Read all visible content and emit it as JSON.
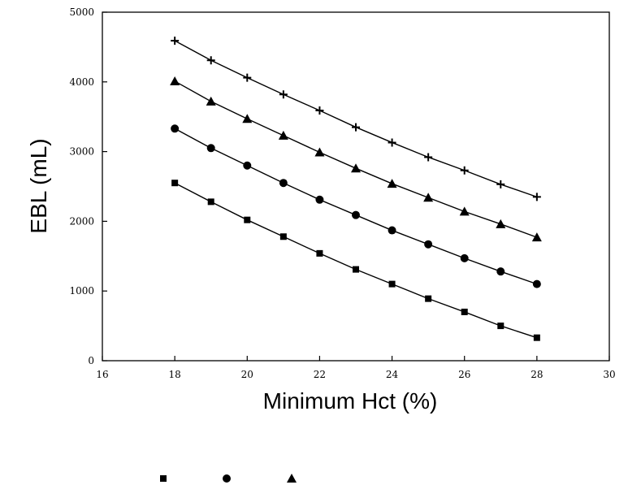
{
  "chart_data": {
    "type": "line",
    "xlabel": "Minimum Hct (%)",
    "ylabel": "EBL (mL)",
    "xlim": [
      16,
      30
    ],
    "ylim": [
      0,
      5000
    ],
    "xticks": [
      16,
      18,
      20,
      22,
      24,
      26,
      28,
      30
    ],
    "yticks": [
      0,
      1000,
      2000,
      3000,
      4000,
      5000
    ],
    "grid": false,
    "x": [
      18,
      19,
      20,
      21,
      22,
      23,
      24,
      25,
      26,
      27,
      28
    ],
    "series": [
      {
        "marker": "square",
        "values": [
          2550,
          2280,
          2020,
          1780,
          1540,
          1310,
          1100,
          890,
          700,
          500,
          330
        ]
      },
      {
        "marker": "circle",
        "values": [
          3330,
          3050,
          2800,
          2550,
          2310,
          2090,
          1870,
          1670,
          1470,
          1280,
          1100
        ]
      },
      {
        "marker": "triangle",
        "values": [
          4010,
          3720,
          3470,
          3230,
          2990,
          2760,
          2540,
          2340,
          2140,
          1960,
          1770
        ]
      },
      {
        "marker": "plus",
        "values": [
          4590,
          4310,
          4060,
          3820,
          3590,
          3350,
          3130,
          2920,
          2730,
          2530,
          2350
        ]
      }
    ],
    "legend_markers": [
      "square",
      "circle",
      "triangle"
    ]
  }
}
